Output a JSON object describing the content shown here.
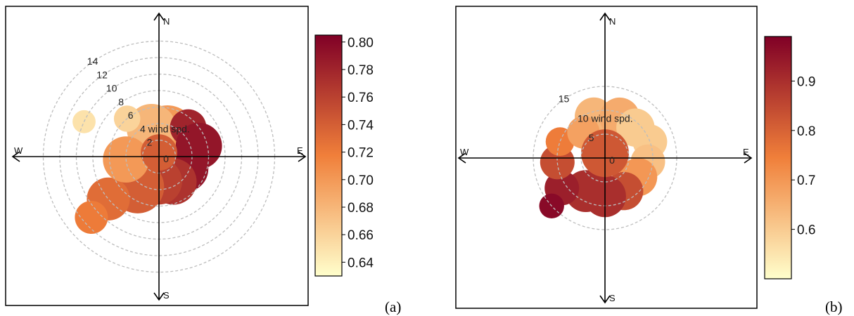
{
  "chart_data": [
    {
      "type": "polar-heatmap",
      "panel_label": "(a)",
      "directions": {
        "north": "N",
        "east": "E",
        "south": "S",
        "west": "W"
      },
      "radial_axis": {
        "ticks": [
          0,
          2,
          4,
          6,
          8,
          10,
          12,
          14
        ],
        "tick_labels": [
          "0",
          "2",
          "4 wind spd.",
          "6",
          "8",
          "10",
          "12",
          "14"
        ],
        "range": [
          0,
          16
        ]
      },
      "colorbar": {
        "range": [
          0.63,
          0.805
        ],
        "ticks": [
          "0.64",
          "0.66",
          "0.68",
          "0.70",
          "0.72",
          "0.74",
          "0.76",
          "0.78",
          "0.80"
        ],
        "low_color": "#ffffcc",
        "mid_color": "#f07f3a",
        "high_color": "#800026"
      },
      "blobs": [
        {
          "angle": 20,
          "ws": 3,
          "radius": 3.4,
          "value": 0.7
        },
        {
          "angle": 345,
          "ws": 3.5,
          "radius": 3.0,
          "value": 0.68
        },
        {
          "angle": 320,
          "ws": 6,
          "radius": 1.6,
          "value": 0.66
        },
        {
          "angle": 45,
          "ws": 5,
          "radius": 2.2,
          "value": 0.78
        },
        {
          "angle": 75,
          "ws": 5,
          "radius": 2.8,
          "value": 0.79
        },
        {
          "angle": 115,
          "ws": 3.5,
          "radius": 2.8,
          "value": 0.79
        },
        {
          "angle": 150,
          "ws": 3.5,
          "radius": 2.8,
          "value": 0.77
        },
        {
          "angle": 180,
          "ws": 3,
          "radius": 2.8,
          "value": 0.76
        },
        {
          "angle": 215,
          "ws": 4.5,
          "radius": 3.2,
          "value": 0.74
        },
        {
          "angle": 230,
          "ws": 8,
          "radius": 2.6,
          "value": 0.73
        },
        {
          "angle": 228,
          "ws": 11,
          "radius": 2.0,
          "value": 0.72
        },
        {
          "angle": 265,
          "ws": 4,
          "radius": 2.8,
          "value": 0.7
        },
        {
          "angle": 295,
          "ws": 10,
          "radius": 1.4,
          "value": 0.65
        },
        {
          "angle": 0,
          "ws": 0.5,
          "radius": 2.2,
          "value": 0.74
        }
      ]
    },
    {
      "type": "polar-heatmap",
      "panel_label": "(b)",
      "directions": {
        "north": "N",
        "east": "E",
        "south": "S",
        "west": "W"
      },
      "radial_axis": {
        "ticks": [
          0,
          5,
          10,
          15
        ],
        "tick_labels": [
          "0",
          "5",
          "10 wind spd.",
          "15"
        ],
        "range": [
          0,
          20
        ]
      },
      "colorbar": {
        "range": [
          0.5,
          0.99
        ],
        "ticks": [
          "0.6",
          "0.7",
          "0.8",
          "0.9"
        ],
        "low_color": "#ffffcc",
        "mid_color": "#f07f3a",
        "high_color": "#800026"
      },
      "blobs": [
        {
          "angle": 345,
          "ws": 9,
          "radius": 4.0,
          "value": 0.64
        },
        {
          "angle": 20,
          "ws": 9,
          "radius": 4.2,
          "value": 0.66
        },
        {
          "angle": 45,
          "ws": 9,
          "radius": 4.0,
          "value": 0.6
        },
        {
          "angle": 70,
          "ws": 10,
          "radius": 3.6,
          "value": 0.6
        },
        {
          "angle": 95,
          "ws": 9,
          "radius": 3.6,
          "value": 0.62
        },
        {
          "angle": 120,
          "ws": 8,
          "radius": 4.0,
          "value": 0.7
        },
        {
          "angle": 150,
          "ws": 8,
          "radius": 4.0,
          "value": 0.84
        },
        {
          "angle": 180,
          "ws": 8,
          "radius": 4.4,
          "value": 0.9
        },
        {
          "angle": 210,
          "ws": 8,
          "radius": 4.4,
          "value": 0.9
        },
        {
          "angle": 235,
          "ws": 11,
          "radius": 3.6,
          "value": 0.93
        },
        {
          "angle": 228,
          "ws": 15,
          "radius": 2.6,
          "value": 0.97
        },
        {
          "angle": 265,
          "ws": 10,
          "radius": 3.6,
          "value": 0.84
        },
        {
          "angle": 290,
          "ws": 10,
          "radius": 3.0,
          "value": 0.75
        },
        {
          "angle": 320,
          "ws": 7,
          "radius": 3.4,
          "value": 0.68
        },
        {
          "angle": 0,
          "ws": 1,
          "radius": 5.0,
          "value": 0.82
        }
      ]
    }
  ]
}
